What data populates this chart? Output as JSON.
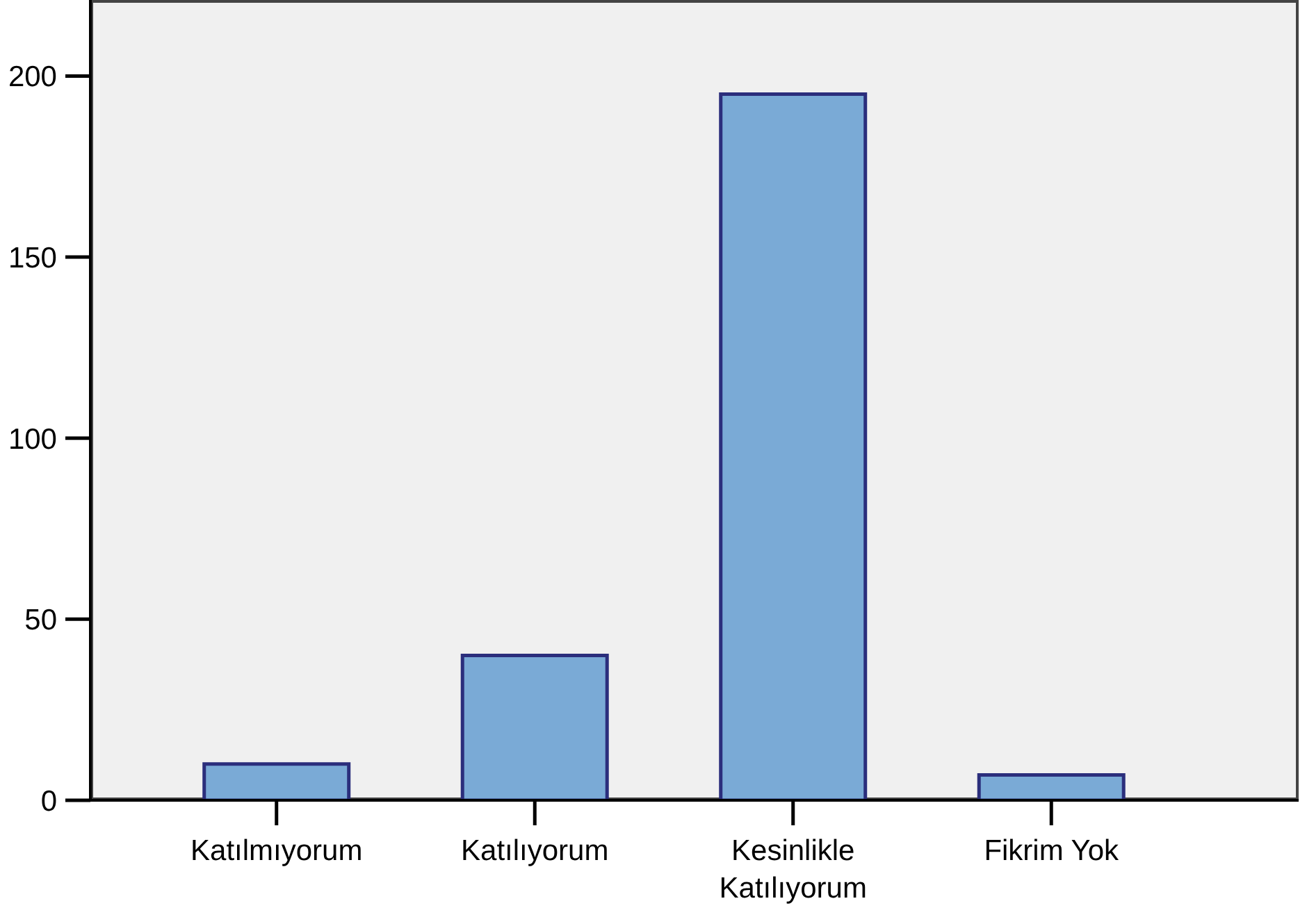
{
  "chart_data": {
    "type": "bar",
    "categories": [
      "Katılmıyorum",
      "Katılıyorum",
      "Kesinlikle Katılıyorum",
      "Fikrim Yok"
    ],
    "values": [
      10,
      40,
      195,
      7
    ],
    "color": "#7aaad6",
    "ylim": [
      0,
      221
    ],
    "yticks": [
      0,
      50,
      100,
      150,
      200
    ]
  }
}
